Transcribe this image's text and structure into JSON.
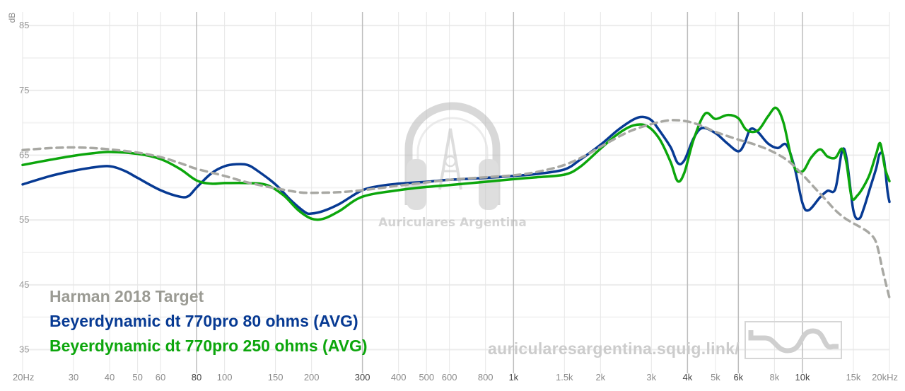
{
  "chart_data": {
    "type": "line",
    "ylabel": "dB",
    "y_ticks": [
      "85",
      "75",
      "65",
      "55",
      "45",
      "35"
    ],
    "x_ticks": [
      {
        "hz": 20,
        "label": "20Hz",
        "major": false
      },
      {
        "hz": 30,
        "label": "30",
        "major": false
      },
      {
        "hz": 40,
        "label": "40",
        "major": false
      },
      {
        "hz": 50,
        "label": "50",
        "major": false
      },
      {
        "hz": 60,
        "label": "60",
        "major": false
      },
      {
        "hz": 80,
        "label": "80",
        "major": true
      },
      {
        "hz": 100,
        "label": "100",
        "major": false
      },
      {
        "hz": 150,
        "label": "150",
        "major": false
      },
      {
        "hz": 200,
        "label": "200",
        "major": false
      },
      {
        "hz": 300,
        "label": "300",
        "major": true
      },
      {
        "hz": 400,
        "label": "400",
        "major": false
      },
      {
        "hz": 500,
        "label": "500",
        "major": false
      },
      {
        "hz": 600,
        "label": "600",
        "major": false
      },
      {
        "hz": 800,
        "label": "800",
        "major": false
      },
      {
        "hz": 1000,
        "label": "1k",
        "major": true
      },
      {
        "hz": 1500,
        "label": "1.5k",
        "major": false
      },
      {
        "hz": 2000,
        "label": "2k",
        "major": false
      },
      {
        "hz": 3000,
        "label": "3k",
        "major": false
      },
      {
        "hz": 4000,
        "label": "4k",
        "major": true
      },
      {
        "hz": 5000,
        "label": "5k",
        "major": false
      },
      {
        "hz": 6000,
        "label": "6k",
        "major": true
      },
      {
        "hz": 8000,
        "label": "8k",
        "major": false
      },
      {
        "hz": 10000,
        "label": "10k",
        "major": true
      },
      {
        "hz": 15000,
        "label": "15k",
        "major": false
      },
      {
        "hz": 20000,
        "label": "20kHz",
        "major": false
      }
    ],
    "x_scale": "log",
    "xlim": [
      20,
      20000
    ],
    "ylim": [
      32,
      86
    ],
    "grid": true,
    "legend_position": "bottom-left",
    "series": [
      {
        "name": "Harman 2018 Target",
        "color": "#a8a8a3",
        "style": "dashed",
        "points": [
          [
            20,
            65.8
          ],
          [
            25,
            66.1
          ],
          [
            30,
            66.2
          ],
          [
            35,
            66.1
          ],
          [
            40,
            65.9
          ],
          [
            50,
            65.4
          ],
          [
            60,
            64.7
          ],
          [
            70,
            63.8
          ],
          [
            80,
            62.9
          ],
          [
            100,
            61.8
          ],
          [
            120,
            60.8
          ],
          [
            150,
            59.9
          ],
          [
            180,
            59.3
          ],
          [
            200,
            59.2
          ],
          [
            250,
            59.3
          ],
          [
            300,
            59.6
          ],
          [
            400,
            60.3
          ],
          [
            500,
            60.8
          ],
          [
            600,
            61.2
          ],
          [
            800,
            61.6
          ],
          [
            1000,
            61.9
          ],
          [
            1200,
            62.4
          ],
          [
            1500,
            63.5
          ],
          [
            1800,
            65.1
          ],
          [
            2000,
            66.3
          ],
          [
            2500,
            68.6
          ],
          [
            3000,
            69.8
          ],
          [
            3500,
            70.4
          ],
          [
            4000,
            70.2
          ],
          [
            4500,
            69.5
          ],
          [
            5000,
            68.6
          ],
          [
            6000,
            67.4
          ],
          [
            7000,
            66.5
          ],
          [
            8000,
            65.4
          ],
          [
            9000,
            64.0
          ],
          [
            10000,
            62.0
          ],
          [
            11000,
            60.0
          ],
          [
            12000,
            58.2
          ],
          [
            13000,
            56.5
          ],
          [
            14000,
            55.3
          ],
          [
            15000,
            54.5
          ],
          [
            16000,
            53.8
          ],
          [
            17000,
            53.0
          ],
          [
            18000,
            51.5
          ],
          [
            19000,
            47.0
          ],
          [
            20000,
            43.0
          ]
        ]
      },
      {
        "name": "Beyerdynamic dt 770pro 80 ohms (AVG)",
        "color": "#073a93",
        "style": "solid",
        "points": [
          [
            20,
            60.5
          ],
          [
            25,
            61.8
          ],
          [
            30,
            62.6
          ],
          [
            35,
            63.1
          ],
          [
            40,
            63.3
          ],
          [
            45,
            62.6
          ],
          [
            50,
            61.5
          ],
          [
            60,
            59.6
          ],
          [
            70,
            58.6
          ],
          [
            75,
            58.7
          ],
          [
            80,
            60.0
          ],
          [
            90,
            62.2
          ],
          [
            100,
            63.3
          ],
          [
            110,
            63.6
          ],
          [
            120,
            63.5
          ],
          [
            130,
            62.6
          ],
          [
            150,
            60.5
          ],
          [
            170,
            58.0
          ],
          [
            190,
            56.2
          ],
          [
            200,
            56.0
          ],
          [
            220,
            56.4
          ],
          [
            250,
            57.5
          ],
          [
            300,
            59.6
          ],
          [
            350,
            60.3
          ],
          [
            400,
            60.6
          ],
          [
            500,
            60.9
          ],
          [
            600,
            61.2
          ],
          [
            800,
            61.5
          ],
          [
            1000,
            61.8
          ],
          [
            1200,
            62.1
          ],
          [
            1500,
            62.8
          ],
          [
            1700,
            64.3
          ],
          [
            2000,
            66.6
          ],
          [
            2300,
            68.9
          ],
          [
            2600,
            70.5
          ],
          [
            2800,
            70.9
          ],
          [
            3000,
            70.4
          ],
          [
            3200,
            68.8
          ],
          [
            3500,
            66.2
          ],
          [
            3700,
            63.8
          ],
          [
            3900,
            64.2
          ],
          [
            4200,
            67.6
          ],
          [
            4500,
            69.2
          ],
          [
            5000,
            68.4
          ],
          [
            5500,
            66.8
          ],
          [
            6000,
            65.6
          ],
          [
            6300,
            66.8
          ],
          [
            6600,
            69.0
          ],
          [
            7000,
            68.6
          ],
          [
            7600,
            66.8
          ],
          [
            8200,
            66.1
          ],
          [
            8800,
            66.6
          ],
          [
            9400,
            63.0
          ],
          [
            10000,
            57.6
          ],
          [
            10500,
            56.5
          ],
          [
            11500,
            58.5
          ],
          [
            12200,
            59.5
          ],
          [
            13000,
            59.8
          ],
          [
            13700,
            65.6
          ],
          [
            14200,
            64.6
          ],
          [
            15000,
            56.5
          ],
          [
            15700,
            55.2
          ],
          [
            16300,
            56.8
          ],
          [
            17100,
            59.8
          ],
          [
            18000,
            63.0
          ],
          [
            18500,
            65.2
          ],
          [
            19100,
            64.6
          ],
          [
            19700,
            59.4
          ],
          [
            20000,
            57.8
          ]
        ]
      },
      {
        "name": "Beyerdynamic dt 770pro 250 ohms (AVG)",
        "color": "#0ca60c",
        "style": "solid",
        "points": [
          [
            20,
            63.5
          ],
          [
            25,
            64.3
          ],
          [
            30,
            64.9
          ],
          [
            35,
            65.3
          ],
          [
            40,
            65.5
          ],
          [
            50,
            65.2
          ],
          [
            60,
            64.4
          ],
          [
            70,
            62.9
          ],
          [
            80,
            61.1
          ],
          [
            90,
            60.6
          ],
          [
            100,
            60.7
          ],
          [
            120,
            60.7
          ],
          [
            140,
            60.4
          ],
          [
            160,
            58.8
          ],
          [
            180,
            56.5
          ],
          [
            200,
            55.2
          ],
          [
            220,
            55.2
          ],
          [
            250,
            56.4
          ],
          [
            300,
            58.6
          ],
          [
            400,
            59.6
          ],
          [
            500,
            60.1
          ],
          [
            600,
            60.4
          ],
          [
            800,
            60.9
          ],
          [
            1000,
            61.3
          ],
          [
            1200,
            61.6
          ],
          [
            1500,
            62.0
          ],
          [
            1700,
            63.2
          ],
          [
            2000,
            66.0
          ],
          [
            2300,
            68.3
          ],
          [
            2600,
            69.6
          ],
          [
            2900,
            69.5
          ],
          [
            3200,
            67.5
          ],
          [
            3500,
            63.9
          ],
          [
            3700,
            61.0
          ],
          [
            3900,
            62.3
          ],
          [
            4200,
            67.4
          ],
          [
            4600,
            71.4
          ],
          [
            5000,
            70.6
          ],
          [
            5500,
            71.2
          ],
          [
            6000,
            70.7
          ],
          [
            6400,
            68.9
          ],
          [
            7000,
            68.8
          ],
          [
            7600,
            71.0
          ],
          [
            8100,
            72.3
          ],
          [
            8600,
            70.0
          ],
          [
            9300,
            63.5
          ],
          [
            10000,
            62.5
          ],
          [
            10700,
            64.6
          ],
          [
            11500,
            65.9
          ],
          [
            12200,
            64.8
          ],
          [
            13000,
            64.6
          ],
          [
            13700,
            66.0
          ],
          [
            14200,
            63.8
          ],
          [
            14800,
            58.5
          ],
          [
            15500,
            58.8
          ],
          [
            16300,
            60.2
          ],
          [
            17100,
            62.1
          ],
          [
            18000,
            65.2
          ],
          [
            18600,
            66.8
          ],
          [
            19300,
            63.0
          ],
          [
            20000,
            61.0
          ]
        ]
      }
    ]
  },
  "watermark": {
    "brand": "Auriculares Argentina",
    "url": "auricularesargentina.squig.link/"
  }
}
